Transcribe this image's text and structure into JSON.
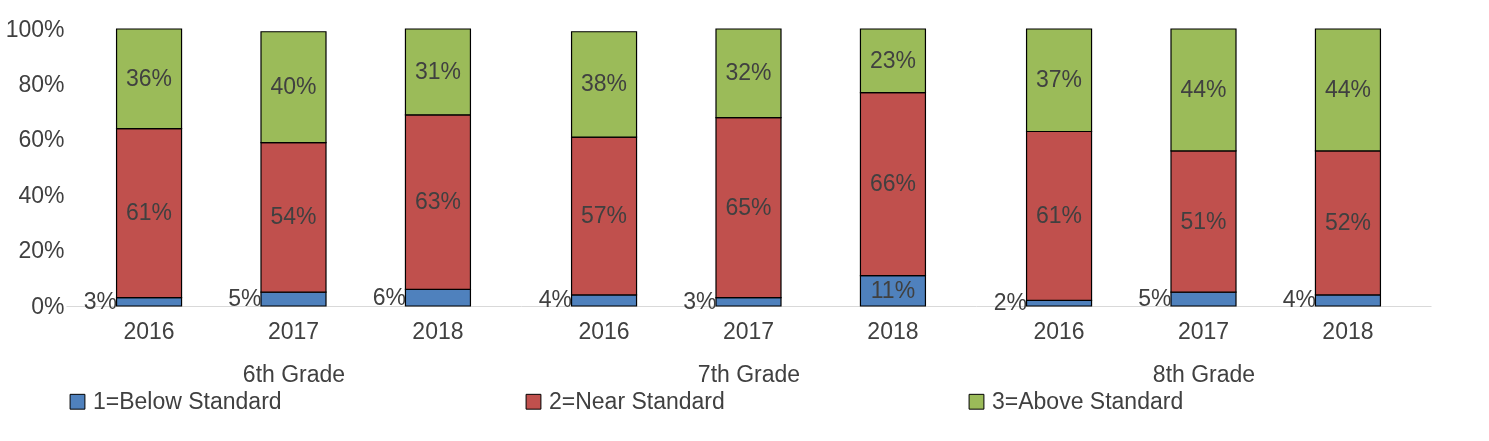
{
  "chart_data": [
    {
      "type": "bar",
      "stacked": true,
      "categories": [
        "2016",
        "2017",
        "2018"
      ],
      "xlabel": "6th Grade",
      "ylim": [
        0,
        100
      ],
      "yticks": [
        {
          "value": 0,
          "label": "0%"
        },
        {
          "value": 20,
          "label": "20%"
        },
        {
          "value": 40,
          "label": "40%"
        },
        {
          "value": 60,
          "label": "60%"
        },
        {
          "value": 80,
          "label": "80%"
        },
        {
          "value": 100,
          "label": "100%"
        }
      ],
      "grid": false,
      "legend": "bottom",
      "series": [
        {
          "name": "1=Below Standard",
          "color": "#4f81bd",
          "values": [
            3,
            5,
            6
          ],
          "value_labels": [
            "3%",
            "5%",
            "6%"
          ]
        },
        {
          "name": "2=Near Standard",
          "color": "#c0504d",
          "values": [
            61,
            54,
            63
          ],
          "value_labels": [
            "61%",
            "54%",
            "63%"
          ]
        },
        {
          "name": "3=Above Standard",
          "color": "#9bbb59",
          "values": [
            36,
            40,
            31
          ],
          "value_labels": [
            "36%",
            "40%",
            "31%"
          ]
        }
      ]
    },
    {
      "type": "bar",
      "stacked": true,
      "categories": [
        "2016",
        "2017",
        "2018"
      ],
      "xlabel": "7th Grade",
      "ylim": [
        0,
        100
      ],
      "tick_labels": "x",
      "grid": false,
      "legend": "bottom",
      "series": [
        {
          "name": "1=Below Standard",
          "color": "#4f81bd",
          "values": [
            4,
            3,
            11
          ],
          "value_labels": [
            "4%",
            "3%",
            "11%"
          ]
        },
        {
          "name": "2=Near Standard",
          "color": "#c0504d",
          "values": [
            57,
            65,
            66
          ],
          "value_labels": [
            "57%",
            "65%",
            "66%"
          ]
        },
        {
          "name": "3=Above Standard",
          "color": "#9bbb59",
          "values": [
            38,
            32,
            23
          ],
          "value_labels": [
            "38%",
            "32%",
            "23%"
          ]
        }
      ]
    },
    {
      "type": "bar",
      "stacked": true,
      "categories": [
        "2016",
        "2017",
        "2018"
      ],
      "xlabel": "8th Grade",
      "ylim": [
        0,
        100
      ],
      "tick_labels": "x",
      "grid": false,
      "legend": "bottom",
      "series": [
        {
          "name": "1=Below Standard",
          "color": "#4f81bd",
          "values": [
            2,
            5,
            4
          ],
          "value_labels": [
            "2%",
            "5%",
            "4%"
          ]
        },
        {
          "name": "2=Near Standard",
          "color": "#c0504d",
          "values": [
            61,
            51,
            52
          ],
          "value_labels": [
            "61%",
            "51%",
            "52%"
          ]
        },
        {
          "name": "3=Above Standard",
          "color": "#9bbb59",
          "values": [
            37,
            44,
            44
          ],
          "value_labels": [
            "37%",
            "44%",
            "44%"
          ]
        }
      ]
    }
  ]
}
